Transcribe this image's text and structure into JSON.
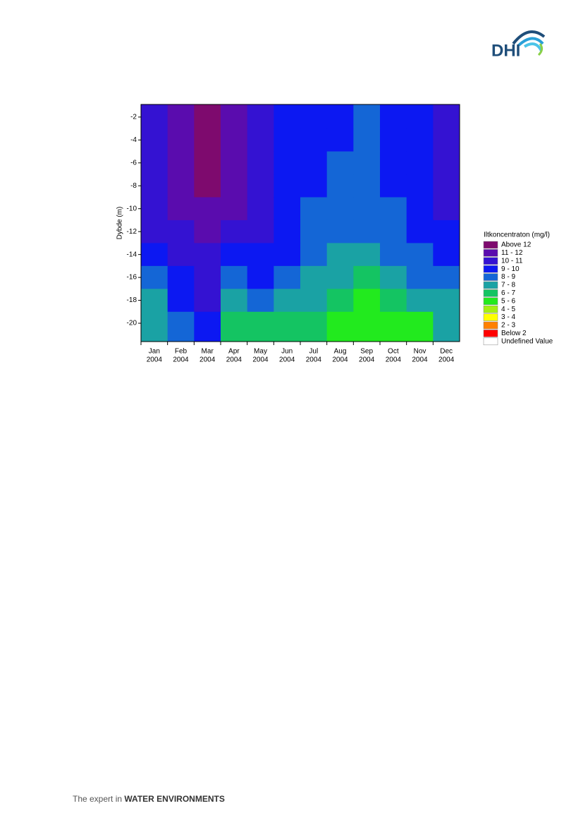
{
  "header": {
    "logo": "DHI"
  },
  "chart_data": {
    "type": "contour",
    "y_label": "Dybde (m)",
    "categories": [
      "Jan",
      "Feb",
      "Mar",
      "Apr",
      "May",
      "Jun",
      "Jul",
      "Aug",
      "Sep",
      "Oct",
      "Nov",
      "Dec"
    ],
    "year_labels": [
      "2004",
      "2004",
      "2004",
      "2004",
      "2004",
      "2004",
      "2004",
      "2004",
      "2004",
      "2004",
      "2004",
      "2004"
    ],
    "ylim": [
      -21.6,
      -0.9
    ],
    "yticks": [
      -2,
      -4,
      -6,
      -8,
      -10,
      -12,
      -14,
      -16,
      -18,
      -20
    ],
    "z": [
      [
        10.5,
        11.5,
        12.2,
        11.5,
        10.5,
        9.5,
        9.3,
        9.0,
        8.5,
        9.3,
        9.5,
        10.5
      ],
      [
        10.5,
        11.5,
        12.2,
        11.5,
        10.5,
        9.5,
        9.3,
        9.0,
        8.7,
        9.3,
        9.5,
        10.5
      ],
      [
        10.5,
        11.5,
        12.2,
        11.5,
        10.5,
        9.5,
        9.2,
        8.8,
        8.5,
        9.2,
        9.5,
        10.3
      ],
      [
        10.4,
        11.4,
        12.1,
        11.8,
        10.5,
        9.5,
        9.0,
        8.5,
        8.3,
        9.0,
        9.5,
        10.2
      ],
      [
        10.3,
        11.3,
        11.8,
        11.3,
        10.3,
        9.5,
        8.8,
        8.3,
        8.2,
        8.8,
        9.4,
        10.0
      ],
      [
        10.0,
        10.8,
        11.3,
        10.8,
        10.0,
        9.3,
        8.6,
        8.0,
        8.0,
        8.6,
        9.2,
        9.6
      ],
      [
        9.5,
        10.0,
        10.5,
        9.5,
        9.5,
        9.0,
        8.3,
        7.6,
        7.5,
        8.2,
        8.8,
        9.2
      ],
      [
        8.5,
        9.5,
        10.0,
        8.0,
        9.0,
        8.5,
        7.8,
        7.0,
        6.8,
        7.6,
        8.2,
        8.6
      ],
      [
        7.8,
        9.0,
        10.0,
        7.0,
        8.0,
        7.5,
        7.0,
        6.0,
        5.8,
        6.8,
        7.0,
        7.8
      ],
      [
        7.5,
        8.5,
        9.5,
        6.0,
        6.5,
        6.0,
        6.0,
        5.5,
        5.3,
        5.8,
        5.8,
        7.2
      ]
    ],
    "legend_title": "Iltkoncentraton (mg/l)",
    "levels": [
      12,
      11,
      10,
      9,
      8,
      7,
      6,
      5,
      4,
      3,
      2
    ],
    "legend": [
      {
        "label": "Above 12",
        "color": "#7e0a6e"
      },
      {
        "label": "11 - 12",
        "color": "#5a0cae"
      },
      {
        "label": "10 - 11",
        "color": "#3412d2"
      },
      {
        "label": "9 - 10",
        "color": "#0c18f2"
      },
      {
        "label": "8 - 9",
        "color": "#1466d6"
      },
      {
        "label": "7 - 8",
        "color": "#1aa2a4"
      },
      {
        "label": "6 - 7",
        "color": "#14c462"
      },
      {
        "label": "5 - 6",
        "color": "#22ea1e"
      },
      {
        "label": "4 - 5",
        "color": "#a4f012"
      },
      {
        "label": "3 - 4",
        "color": "#ffff00"
      },
      {
        "label": "2 - 3",
        "color": "#ff8000"
      },
      {
        "label": "Below 2",
        "color": "#ff0000"
      },
      {
        "label": "Undefined Value",
        "color": "#ffffff"
      }
    ]
  },
  "footer": {
    "tagline": "The expert in ",
    "tagline_bold": "WATER ENVIRONMENTS"
  }
}
